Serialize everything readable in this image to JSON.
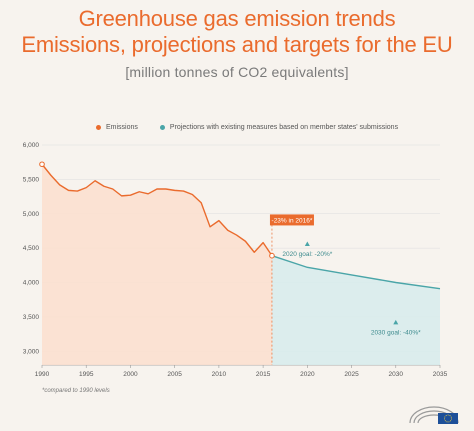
{
  "header": {
    "title_line1": "Greenhouse gas emission trends",
    "title_line2": "Emissions, projections and targets for the EU",
    "subtitle": "[million tonnes of CO2 equivalents]"
  },
  "footnote": "*compared to 1990 levels",
  "colors": {
    "emissions": "#ea6b2d",
    "projections": "#4aa5a8",
    "emissions_fill": "#fbe0cf",
    "projections_fill": "#d8ecec",
    "grid": "#dddddd",
    "axis_text": "#555555"
  },
  "chart_data": {
    "type": "line",
    "title": "",
    "xlabel": "",
    "ylabel": "",
    "xlim": [
      1990,
      2035
    ],
    "ylim": [
      2800,
      6000
    ],
    "x_ticks": [
      1990,
      1995,
      2000,
      2005,
      2010,
      2015,
      2020,
      2025,
      2030,
      2035
    ],
    "y_ticks": [
      3000,
      3500,
      4000,
      4500,
      5000,
      5500,
      6000
    ],
    "y_tick_labels": [
      "3,000",
      "3,500",
      "4,000",
      "4,500",
      "5,000",
      "5,500",
      "6,000"
    ],
    "legend": {
      "placement": "top"
    },
    "series": [
      {
        "name": "Emissions",
        "x": [
          1990,
          1991,
          1992,
          1993,
          1994,
          1995,
          1996,
          1997,
          1998,
          1999,
          2000,
          2001,
          2002,
          2003,
          2004,
          2005,
          2006,
          2007,
          2008,
          2009,
          2010,
          2011,
          2012,
          2013,
          2014,
          2015,
          2016
        ],
        "y": [
          5720,
          5560,
          5420,
          5340,
          5330,
          5380,
          5480,
          5400,
          5360,
          5260,
          5270,
          5320,
          5290,
          5360,
          5360,
          5340,
          5330,
          5280,
          5160,
          4810,
          4900,
          4760,
          4690,
          4600,
          4440,
          4580,
          4390
        ]
      },
      {
        "name": "Projections with existing measures based on member states' submissions",
        "x": [
          2016,
          2020,
          2025,
          2030,
          2035
        ],
        "y": [
          4390,
          4220,
          4110,
          4000,
          3910
        ]
      }
    ],
    "annotations": [
      {
        "label": "-23% in 2016*",
        "x": 2016,
        "y": 4390
      },
      {
        "label": "2020 goal: -20%*",
        "x": 2020,
        "y": 4560
      },
      {
        "label": "2030 goal: -40%*",
        "x": 2030,
        "y": 3420
      }
    ]
  }
}
